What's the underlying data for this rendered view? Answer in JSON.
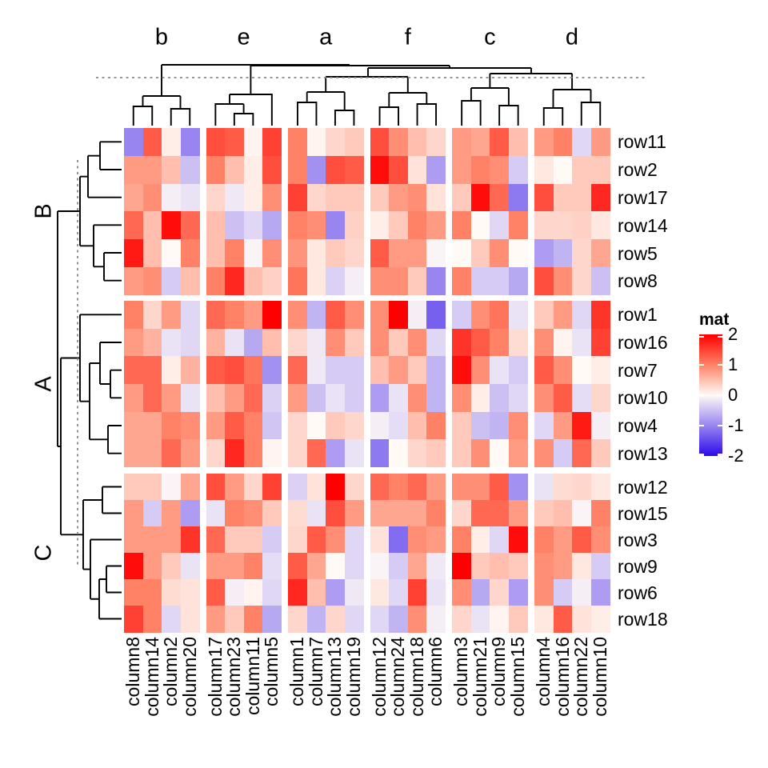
{
  "figure": {
    "background": "#ffffff"
  },
  "legend": {
    "title": "mat"
  },
  "chart_data": {
    "type": "heatmap",
    "title": "",
    "legend_title": "mat",
    "colorbar_ticks": [
      2,
      1,
      0,
      -1,
      -2
    ],
    "value_range": [
      -2,
      2
    ],
    "color_anchors": {
      "max": "#FF0000",
      "pos_mid": "#FF8266",
      "zero": "#FFFAF6",
      "neg_mid": "#9885F0",
      "min": "#2A0AEB"
    },
    "row_dendrogram": true,
    "column_dendrogram": true,
    "cut_line_style": "dotted",
    "column_groups": [
      {
        "label": "b",
        "columns": [
          "column8",
          "column14",
          "column2",
          "column20"
        ]
      },
      {
        "label": "e",
        "columns": [
          "column17",
          "column23",
          "column11",
          "column5"
        ]
      },
      {
        "label": "a",
        "columns": [
          "column1",
          "column7",
          "column13",
          "column19"
        ]
      },
      {
        "label": "f",
        "columns": [
          "column12",
          "column24",
          "column18",
          "column6"
        ]
      },
      {
        "label": "c",
        "columns": [
          "column3",
          "column21",
          "column9",
          "column15"
        ]
      },
      {
        "label": "d",
        "columns": [
          "column4",
          "column16",
          "column22",
          "column10"
        ]
      }
    ],
    "row_groups": [
      {
        "label": "B",
        "rows": [
          "row11",
          "row2",
          "row17",
          "row14",
          "row5",
          "row8"
        ]
      },
      {
        "label": "A",
        "rows": [
          "row1",
          "row16",
          "row7",
          "row10",
          "row4",
          "row13"
        ]
      },
      {
        "label": "C",
        "rows": [
          "row12",
          "row15",
          "row3",
          "row9",
          "row6",
          "row18"
        ]
      }
    ],
    "columns": [
      "column8",
      "column14",
      "column2",
      "column20",
      "column17",
      "column23",
      "column11",
      "column5",
      "column1",
      "column7",
      "column13",
      "column19",
      "column12",
      "column24",
      "column18",
      "column6",
      "column3",
      "column21",
      "column9",
      "column15",
      "column4",
      "column16",
      "column22",
      "column10"
    ],
    "rows": [
      "row11",
      "row2",
      "row17",
      "row14",
      "row5",
      "row8",
      "row1",
      "row16",
      "row7",
      "row10",
      "row4",
      "row13",
      "row12",
      "row15",
      "row3",
      "row9",
      "row6",
      "row18"
    ],
    "values_note": "approximate values decoded from cell colors on the -2..2 scale",
    "values": [
      [
        -1.0,
        1.3,
        0.1,
        -1.0,
        1.4,
        1.3,
        0.05,
        1.5,
        1.0,
        0.05,
        0.3,
        0.4,
        1.4,
        0.9,
        0.5,
        0.3,
        0.8,
        0.7,
        1.3,
        0.5,
        0.8,
        1.0,
        -0.3,
        0.8
      ],
      [
        0.8,
        0.8,
        0.5,
        -0.5,
        1.0,
        0.5,
        0.1,
        1.4,
        1.0,
        -0.9,
        1.4,
        1.3,
        1.9,
        1.4,
        0.2,
        -0.8,
        0.8,
        1.0,
        0.9,
        -0.4,
        0.15,
        0.0,
        0.4,
        0.4
      ],
      [
        0.7,
        0.9,
        -0.1,
        -0.2,
        0.3,
        -0.15,
        0.1,
        0.9,
        1.5,
        0.3,
        0.4,
        0.4,
        0.4,
        0.8,
        0.9,
        0.2,
        0.4,
        1.9,
        1.2,
        -1.1,
        1.4,
        0.4,
        0.4,
        1.7
      ],
      [
        1.2,
        0.5,
        1.9,
        1.2,
        0.5,
        -0.5,
        -0.3,
        -0.7,
        1.0,
        0.9,
        -1.0,
        0.35,
        0.1,
        0.4,
        1.0,
        0.8,
        1.0,
        0.0,
        -0.3,
        1.0,
        0.3,
        0.3,
        0.35,
        0.15
      ],
      [
        1.8,
        0.5,
        0.0,
        1.0,
        0.5,
        1.0,
        -0.05,
        0.9,
        0.85,
        0.15,
        0.4,
        0.3,
        1.3,
        0.8,
        0.8,
        -0.05,
        0.0,
        0.4,
        0.9,
        0.0,
        -0.8,
        -0.6,
        0.3,
        0.7
      ],
      [
        0.8,
        0.9,
        -0.4,
        0.5,
        1.0,
        1.7,
        0.5,
        0.35,
        1.1,
        0.15,
        -0.35,
        -0.1,
        0.9,
        0.9,
        0.4,
        -1.0,
        1.0,
        -0.4,
        -0.4,
        -0.7,
        1.4,
        0.9,
        0.3,
        -0.5
      ],
      [
        1.0,
        0.3,
        0.8,
        -0.3,
        1.2,
        1.0,
        0.8,
        2.0,
        0.9,
        -0.6,
        1.3,
        0.9,
        0.9,
        2.0,
        -0.1,
        -1.3,
        -0.4,
        0.9,
        1.1,
        -0.2,
        0.4,
        0.8,
        -0.3,
        1.6
      ],
      [
        0.8,
        0.6,
        -0.2,
        -0.3,
        0.6,
        -0.2,
        -0.7,
        0.5,
        0.3,
        -0.15,
        0.9,
        0.4,
        0.9,
        0.4,
        0.9,
        -0.3,
        1.6,
        1.3,
        1.0,
        0.25,
        0.9,
        0.05,
        -0.2,
        1.5
      ],
      [
        1.2,
        1.2,
        0.1,
        0.6,
        1.3,
        1.4,
        1.1,
        -0.9,
        1.2,
        -0.15,
        -0.4,
        -0.4,
        0.5,
        0.8,
        0.4,
        -0.6,
        1.9,
        0.9,
        -0.2,
        -0.4,
        1.3,
        0.9,
        0.0,
        0.1
      ],
      [
        0.8,
        1.2,
        0.8,
        -0.2,
        0.5,
        0.8,
        1.2,
        -0.35,
        0.8,
        -0.5,
        -0.2,
        -0.4,
        -0.8,
        -0.2,
        0.9,
        -0.6,
        0.9,
        0.1,
        -0.5,
        -0.3,
        0.9,
        1.3,
        -0.25,
        0.3
      ],
      [
        0.7,
        0.7,
        1.0,
        0.9,
        0.8,
        1.3,
        1.0,
        -0.45,
        0.3,
        0.0,
        0.4,
        0.3,
        -0.1,
        -0.25,
        0.5,
        1.0,
        0.4,
        -0.5,
        -0.6,
        0.9,
        -0.3,
        0.8,
        1.8,
        -0.1
      ],
      [
        0.7,
        0.7,
        1.2,
        0.8,
        0.3,
        1.7,
        1.0,
        0.05,
        0.3,
        1.2,
        -0.8,
        -0.2,
        -1.1,
        0.0,
        0.3,
        0.4,
        0.4,
        0.9,
        0.0,
        0.8,
        0.9,
        -0.4,
        1.2,
        0.4
      ],
      [
        0.4,
        0.4,
        -0.05,
        0.7,
        1.4,
        0.8,
        0.3,
        1.5,
        -0.35,
        0.2,
        2.0,
        0.3,
        1.2,
        1.0,
        1.2,
        0.8,
        0.9,
        0.9,
        1.3,
        -0.9,
        -0.2,
        0.25,
        0.3,
        0.15
      ],
      [
        0.8,
        -0.4,
        0.8,
        -0.8,
        -0.2,
        1.0,
        0.9,
        0.4,
        0.25,
        -0.2,
        1.4,
        0.8,
        0.7,
        0.7,
        0.7,
        1.0,
        0.3,
        1.2,
        1.2,
        0.8,
        0.4,
        0.5,
        -0.05,
        1.0
      ],
      [
        0.8,
        0.8,
        0.8,
        1.6,
        1.2,
        0.4,
        0.4,
        -0.4,
        0.3,
        1.3,
        0.9,
        -0.3,
        0.2,
        -1.2,
        0.9,
        0.8,
        1.0,
        0.1,
        -0.3,
        1.9,
        1.0,
        0.8,
        1.3,
        0.9
      ],
      [
        1.9,
        0.8,
        0.4,
        -0.2,
        0.8,
        0.8,
        1.0,
        -0.25,
        1.3,
        0.7,
        0.0,
        -0.3,
        -0.05,
        -0.4,
        0.7,
        -0.15,
        2.0,
        0.4,
        0.5,
        0.4,
        0.9,
        0.8,
        0.15,
        -0.4
      ],
      [
        1.0,
        1.0,
        0.25,
        0.2,
        1.3,
        -0.1,
        0.05,
        -0.3,
        1.7,
        0.5,
        -0.8,
        -0.15,
        0.15,
        -0.3,
        1.5,
        -0.2,
        0.9,
        -0.7,
        0.3,
        -0.8,
        0.9,
        -0.4,
        -0.1,
        -0.8
      ],
      [
        1.5,
        1.0,
        -0.3,
        0.2,
        0.8,
        0.4,
        1.0,
        -0.7,
        0.3,
        -0.6,
        0.3,
        -0.3,
        -0.3,
        -0.6,
        0.9,
        -0.1,
        0.3,
        -0.2,
        0.05,
        0.4,
        0.15,
        1.3,
        0.2,
        0.1
      ]
    ]
  }
}
